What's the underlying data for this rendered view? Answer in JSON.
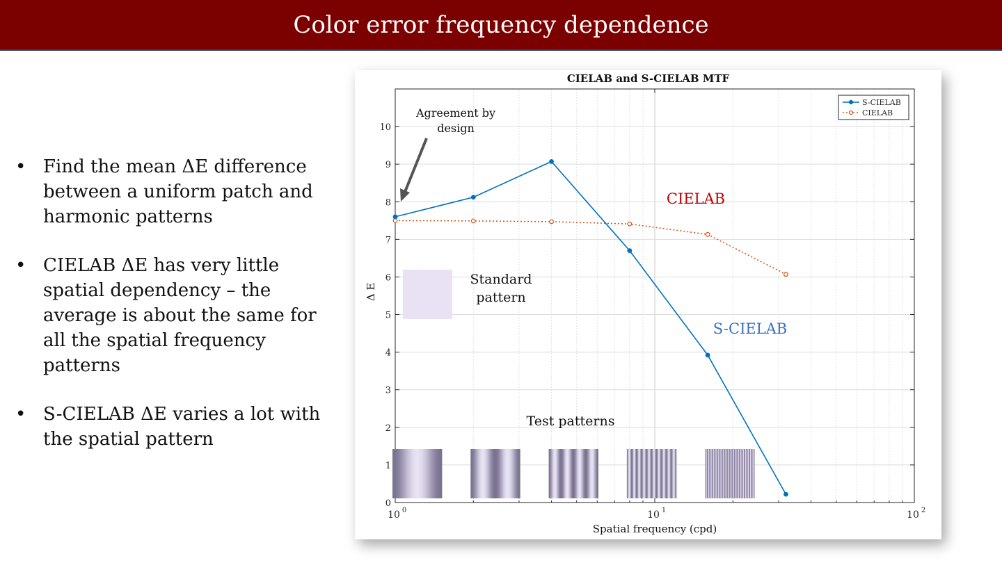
{
  "slide": {
    "title": "Color error frequency dependence",
    "bullets": [
      "Find the mean ΔE difference between a uniform patch and harmonic patterns",
      "CIELAB ΔE has very little spatial dependency – the average is about the same for all the spatial frequency patterns",
      "S-CIELAB ΔE varies a lot with the spatial pattern"
    ],
    "bullet_symbol": "•"
  },
  "annotations": {
    "agreement_line1": "Agreement by",
    "agreement_line2": "design",
    "cielab_label": "CIELAB",
    "scielab_label": "S-CIELAB",
    "standard_line1": "Standard",
    "standard_line2": "pattern",
    "test_patterns": "Test patterns"
  },
  "colors": {
    "title_bar": "#7b0000",
    "s_cielab": "#0072bd",
    "cielab": "#d95319",
    "cielab_annotation": "#c00000",
    "s_cielab_annotation": "#3a6fbf",
    "standard_patch": "#e8e2f4"
  },
  "chart_data": {
    "type": "line",
    "title": "CIELAB and S-CIELAB MTF",
    "xlabel": "Spatial frequency (cpd)",
    "ylabel": "Δ E",
    "xscale": "log",
    "xlim": [
      1,
      100
    ],
    "ylim": [
      0,
      11
    ],
    "grid": true,
    "legend_position": "top-right",
    "x_tick_labels": [
      {
        "base": "10",
        "exp": "0",
        "value": 1
      },
      {
        "base": "10",
        "exp": "1",
        "value": 10
      },
      {
        "base": "10",
        "exp": "2",
        "value": 100
      }
    ],
    "y_ticks": [
      0,
      1,
      2,
      3,
      4,
      5,
      6,
      7,
      8,
      9,
      10
    ],
    "x": [
      1,
      2,
      4,
      8,
      16,
      32
    ],
    "series": [
      {
        "name": "S-CIELAB",
        "values": [
          7.6,
          8.12,
          9.07,
          6.7,
          3.92,
          0.22
        ],
        "style": "solid"
      },
      {
        "name": "CIELAB",
        "values": [
          7.5,
          7.49,
          7.47,
          7.41,
          7.13,
          6.07
        ],
        "style": "dotted"
      }
    ],
    "test_pattern_frequencies": [
      1,
      2,
      4,
      8,
      16
    ]
  }
}
